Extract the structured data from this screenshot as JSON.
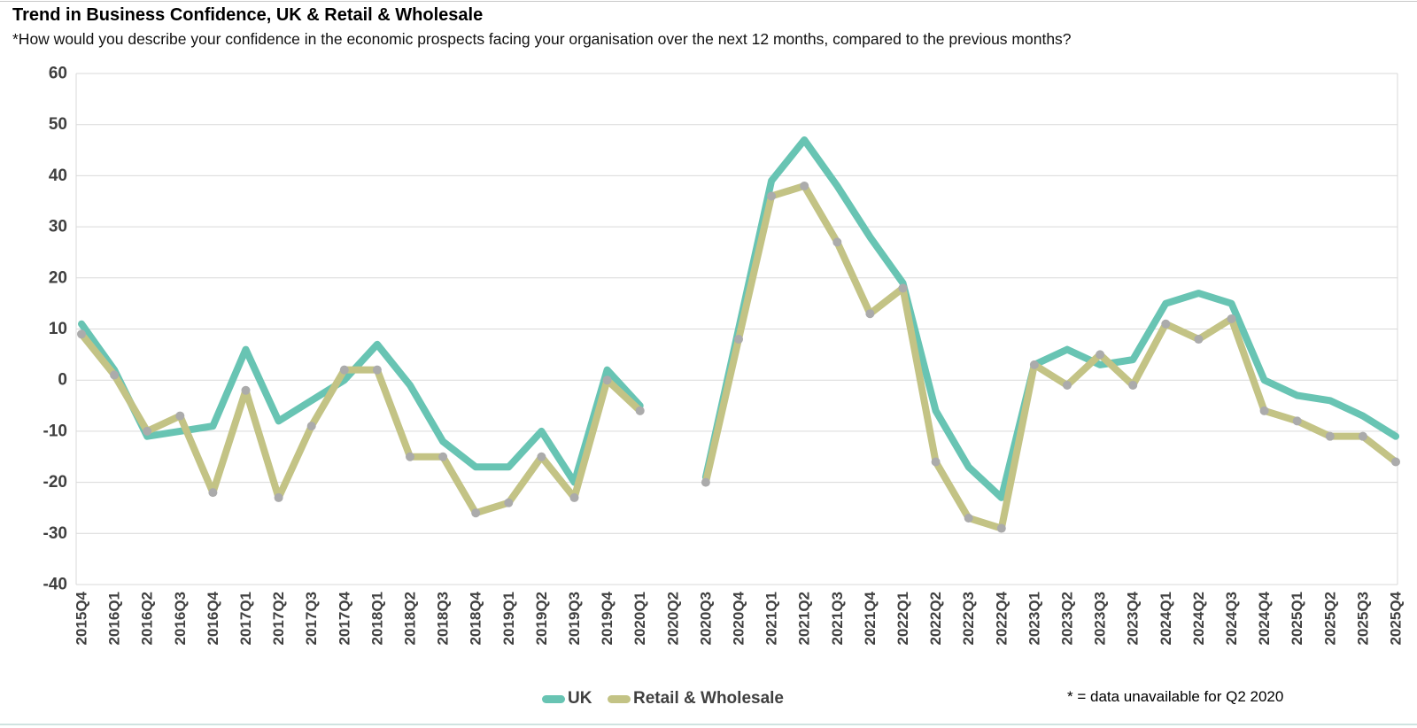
{
  "header": {
    "title": "Trend in Business Confidence, UK & Retail & Wholesale",
    "subtitle": "*How would you describe your confidence in the economic prospects facing your organisation over the next 12 months, compared to the previous months?"
  },
  "legend": {
    "items": [
      {
        "label": "UK",
        "color": "#68C4B3"
      },
      {
        "label": "Retail & Wholesale",
        "color": "#C3C385"
      }
    ]
  },
  "note": "* = data unavailable for Q2 2020",
  "colors": {
    "gridline": "#D9D9D9",
    "axis_text": "#3F3F3F",
    "marker": "#ABABAB"
  },
  "chart_data": {
    "type": "line",
    "title": "Trend in Business Confidence, UK & Retail & Wholesale",
    "xlabel": "",
    "ylabel": "",
    "ylim": [
      -40,
      60
    ],
    "yticks": [
      60,
      50,
      40,
      30,
      20,
      10,
      0,
      -10,
      -20,
      -30,
      -40
    ],
    "grid": "horizontal",
    "legend_position": "bottom",
    "missing_periods": [
      "2020Q2"
    ],
    "categories": [
      "2015Q4",
      "2016Q1",
      "2016Q2",
      "2016Q3",
      "2016Q4",
      "2017Q1",
      "2017Q2",
      "2017Q3",
      "2017Q4",
      "2018Q1",
      "2018Q2",
      "2018Q3",
      "2018Q4",
      "2019Q1",
      "2019Q2",
      "2019Q3",
      "2019Q4",
      "2020Q1",
      "2020Q2",
      "2020Q3",
      "2020Q4",
      "2021Q1",
      "2021Q2",
      "2021Q3",
      "2021Q4",
      "2022Q1",
      "2022Q2",
      "2022Q3",
      "2022Q4",
      "2023Q1",
      "2023Q2",
      "2023Q3",
      "2023Q4",
      "2024Q1",
      "2024Q2",
      "2024Q3",
      "2024Q4",
      "2025Q1",
      "2025Q2",
      "2025Q3",
      "2025Q4"
    ],
    "series": [
      {
        "name": "UK",
        "color": "#68C4B3",
        "marker": false,
        "values": [
          11,
          2,
          -11,
          -10,
          -9,
          6,
          -8,
          -4,
          0,
          7,
          -1,
          -12,
          -17,
          -17,
          -10,
          -20,
          2,
          -5,
          null,
          -19,
          10,
          39,
          47,
          38,
          28,
          19,
          -6,
          -17,
          -23,
          3,
          6,
          3,
          4,
          15,
          17,
          15,
          0,
          -3,
          -4,
          -7,
          -11
        ]
      },
      {
        "name": "Retail & Wholesale",
        "color": "#C3C385",
        "marker": true,
        "marker_color": "#ABABAB",
        "values": [
          9,
          1,
          -10,
          -7,
          -22,
          -2,
          -23,
          -9,
          2,
          2,
          -15,
          -15,
          -26,
          -24,
          -15,
          -23,
          0,
          -6,
          null,
          -20,
          8,
          36,
          38,
          27,
          13,
          18,
          -16,
          -27,
          -29,
          3,
          -1,
          5,
          -1,
          11,
          8,
          12,
          -6,
          -8,
          -11,
          -11,
          -16
        ]
      }
    ]
  }
}
